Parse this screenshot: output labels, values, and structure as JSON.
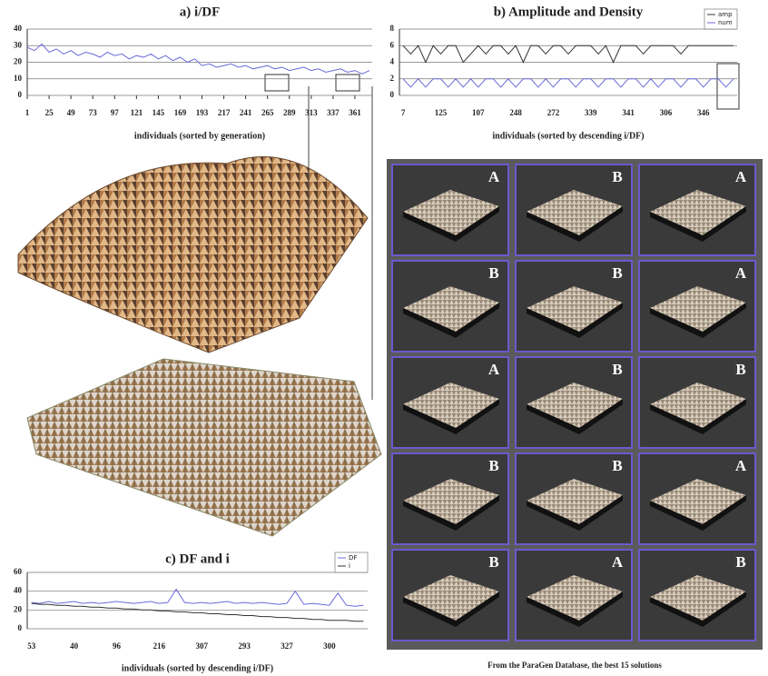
{
  "chart_data": [
    {
      "type": "line",
      "title": "a)  i/DF",
      "x_label": "individuals (sorted by generation)",
      "x": [
        1,
        9,
        17,
        25,
        33,
        41,
        49,
        57,
        65,
        73,
        81,
        89,
        97,
        105,
        113,
        121,
        129,
        137,
        145,
        153,
        161,
        169,
        177,
        185,
        193,
        201,
        209,
        217,
        225,
        233,
        241,
        249,
        257,
        265,
        273,
        281,
        289,
        297,
        305,
        313,
        321,
        329,
        337,
        345,
        353,
        361,
        369,
        377
      ],
      "xlim": [
        1,
        380
      ],
      "xticks": [
        1,
        25,
        49,
        73,
        97,
        121,
        145,
        169,
        193,
        217,
        241,
        265,
        289,
        313,
        337,
        361
      ],
      "ylim": [
        0,
        40
      ],
      "yticks": [
        0,
        10,
        20,
        30,
        40
      ],
      "grid": true,
      "series": [
        {
          "name": "i/DF",
          "color": "#6a6ad8",
          "values": [
            29,
            27,
            31,
            26,
            28,
            25,
            27,
            24,
            26,
            25,
            23,
            26,
            24,
            25,
            22,
            24,
            23,
            25,
            22,
            24,
            21,
            23,
            20,
            22,
            18,
            19,
            17,
            18,
            19,
            17,
            18,
            16,
            17,
            18,
            16,
            17,
            15,
            16,
            17,
            15,
            16,
            14,
            15,
            16,
            14,
            15,
            13,
            15
          ]
        }
      ]
    },
    {
      "type": "line",
      "title": "b) Amplitude and Density",
      "x_label": "individuals (sorted by descending i/DF)",
      "categories": [
        "7",
        null,
        null,
        null,
        null,
        "125",
        null,
        null,
        null,
        null,
        "107",
        null,
        null,
        null,
        null,
        "248",
        null,
        null,
        null,
        null,
        "272",
        null,
        null,
        null,
        null,
        "339",
        null,
        null,
        null,
        null,
        "341",
        null,
        null,
        null,
        null,
        "306",
        null,
        null,
        null,
        null,
        "346",
        null,
        null,
        null,
        null
      ],
      "ylim": [
        0,
        8
      ],
      "yticks": [
        0,
        2,
        4,
        6,
        8
      ],
      "grid": true,
      "legend": "top-right",
      "series": [
        {
          "name": "amp",
          "color": "#333333",
          "values": [
            6,
            5,
            6,
            4,
            6,
            5,
            6,
            6,
            4,
            5,
            6,
            5,
            6,
            6,
            5,
            6,
            4,
            6,
            6,
            5,
            6,
            6,
            5,
            6,
            6,
            6,
            5,
            6,
            4,
            6,
            6,
            6,
            5,
            6,
            6,
            6,
            6,
            5,
            6,
            6,
            6,
            6,
            6,
            6,
            6
          ]
        },
        {
          "name": "num",
          "color": "#6a6ad8",
          "values": [
            2,
            1,
            2,
            1,
            2,
            2,
            1,
            2,
            1,
            2,
            1,
            2,
            2,
            1,
            2,
            1,
            2,
            2,
            1,
            2,
            1,
            2,
            2,
            1,
            2,
            2,
            1,
            2,
            2,
            1,
            2,
            2,
            1,
            2,
            1,
            2,
            2,
            1,
            2,
            2,
            1,
            2,
            2,
            1,
            2
          ]
        }
      ]
    },
    {
      "type": "line",
      "title": "c)  DF and i",
      "x_label": "individuals (sorted by descending i/DF)",
      "categories": [
        "53",
        null,
        null,
        null,
        null,
        "40",
        null,
        null,
        null,
        null,
        "96",
        null,
        null,
        null,
        null,
        "216",
        null,
        null,
        null,
        null,
        "307",
        null,
        null,
        null,
        null,
        "293",
        null,
        null,
        null,
        null,
        "327",
        null,
        null,
        null,
        null,
        "300",
        null,
        null,
        null,
        null
      ],
      "ylim": [
        0,
        60
      ],
      "yticks": [
        0,
        20,
        40,
        60
      ],
      "grid": true,
      "legend": "top-right",
      "series": [
        {
          "name": "DF",
          "color": "#6a6ad8",
          "values": [
            28,
            27,
            29,
            27,
            28,
            29,
            27,
            28,
            27,
            28,
            29,
            28,
            27,
            28,
            29,
            27,
            28,
            42,
            28,
            27,
            28,
            27,
            28,
            29,
            27,
            28,
            27,
            28,
            27,
            26,
            27,
            40,
            26,
            27,
            26,
            25,
            38,
            25,
            24,
            25
          ]
        },
        {
          "name": "i",
          "color": "#333333",
          "values": [
            27,
            26,
            26,
            25,
            25,
            24,
            24,
            23,
            23,
            22,
            22,
            21,
            21,
            20,
            20,
            19,
            19,
            18,
            18,
            17,
            17,
            16,
            16,
            15,
            15,
            14,
            14,
            13,
            13,
            12,
            12,
            11,
            11,
            10,
            10,
            9,
            9,
            9,
            8,
            8
          ]
        }
      ]
    }
  ],
  "gallery": {
    "caption": "From the ParaGen Database, the best 15 solutions",
    "labels": [
      "A",
      "B",
      "A",
      "B",
      "B",
      "A",
      "A",
      "B",
      "B",
      "B",
      "B",
      "A",
      "B",
      "A",
      "B"
    ]
  }
}
